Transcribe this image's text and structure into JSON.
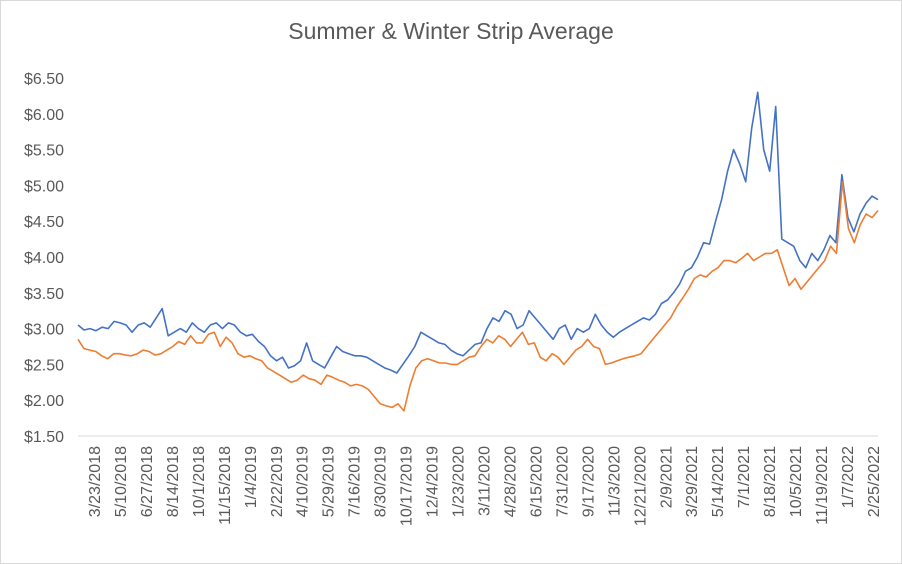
{
  "chart_data": {
    "type": "line",
    "title": "Summer & Winter Strip Average",
    "xlabel": "",
    "ylabel": "",
    "ylim": [
      1.5,
      6.5
    ],
    "y_ticks": [
      "$1.50",
      "$2.00",
      "$2.50",
      "$3.00",
      "$3.50",
      "$4.00",
      "$4.50",
      "$5.00",
      "$5.50",
      "$6.00",
      "$6.50"
    ],
    "x_ticks": [
      "3/23/2018",
      "5/10/2018",
      "6/27/2018",
      "8/14/2018",
      "10/1/2018",
      "11/15/2018",
      "1/4/2019",
      "2/22/2019",
      "4/10/2019",
      "5/29/2019",
      "7/16/2019",
      "8/30/2019",
      "10/17/2019",
      "12/4/2019",
      "1/23/2020",
      "3/11/2020",
      "4/28/2020",
      "6/15/2020",
      "7/31/2020",
      "9/17/2020",
      "11/3/2020",
      "12/21/2020",
      "2/9/2021",
      "3/29/2021",
      "5/14/2021",
      "7/1/2021",
      "8/18/2021",
      "10/5/2021",
      "11/19/2021",
      "1/7/2022",
      "2/25/2022"
    ],
    "grid": false,
    "legend": "none",
    "series": [
      {
        "color": "#4472c4",
        "values": [
          3.05,
          2.98,
          3.0,
          2.97,
          3.02,
          3.0,
          3.1,
          3.08,
          3.05,
          2.95,
          3.05,
          3.08,
          3.02,
          3.15,
          3.28,
          2.9,
          2.95,
          3.0,
          2.95,
          3.08,
          3.0,
          2.95,
          3.05,
          3.08,
          3.0,
          3.08,
          3.05,
          2.95,
          2.9,
          2.92,
          2.82,
          2.75,
          2.62,
          2.55,
          2.6,
          2.45,
          2.48,
          2.55,
          2.8,
          2.55,
          2.5,
          2.45,
          2.6,
          2.75,
          2.68,
          2.65,
          2.62,
          2.62,
          2.6,
          2.55,
          2.5,
          2.45,
          2.42,
          2.38,
          2.5,
          2.62,
          2.75,
          2.95,
          2.9,
          2.85,
          2.8,
          2.78,
          2.7,
          2.65,
          2.62,
          2.7,
          2.78,
          2.8,
          3.0,
          3.15,
          3.1,
          3.25,
          3.2,
          3.0,
          3.05,
          3.25,
          3.15,
          3.05,
          2.95,
          2.85,
          3.0,
          3.05,
          2.85,
          3.0,
          2.95,
          3.0,
          3.2,
          3.05,
          2.95,
          2.88,
          2.95,
          3.0,
          3.05,
          3.1,
          3.15,
          3.12,
          3.2,
          3.35,
          3.4,
          3.5,
          3.62,
          3.8,
          3.85,
          4.0,
          4.2,
          4.18,
          4.5,
          4.8,
          5.2,
          5.5,
          5.3,
          5.05,
          5.8,
          6.3,
          5.5,
          5.2,
          6.1,
          4.25,
          4.2,
          4.15,
          3.95,
          3.85,
          4.05,
          3.95,
          4.1,
          4.3,
          4.2,
          5.15,
          4.55,
          4.35,
          4.6,
          4.75,
          4.85,
          4.8
        ]
      },
      {
        "color": "#ed7d31",
        "values": [
          2.85,
          2.72,
          2.7,
          2.68,
          2.62,
          2.58,
          2.65,
          2.65,
          2.63,
          2.62,
          2.65,
          2.7,
          2.68,
          2.63,
          2.65,
          2.7,
          2.75,
          2.82,
          2.78,
          2.9,
          2.8,
          2.8,
          2.92,
          2.95,
          2.75,
          2.88,
          2.8,
          2.65,
          2.6,
          2.62,
          2.58,
          2.55,
          2.45,
          2.4,
          2.35,
          2.3,
          2.25,
          2.28,
          2.35,
          2.3,
          2.28,
          2.22,
          2.35,
          2.32,
          2.28,
          2.25,
          2.2,
          2.22,
          2.2,
          2.15,
          2.05,
          1.95,
          1.92,
          1.9,
          1.95,
          1.85,
          2.2,
          2.45,
          2.55,
          2.58,
          2.55,
          2.52,
          2.52,
          2.5,
          2.5,
          2.55,
          2.6,
          2.62,
          2.75,
          2.85,
          2.8,
          2.9,
          2.85,
          2.75,
          2.85,
          2.95,
          2.78,
          2.8,
          2.6,
          2.55,
          2.65,
          2.6,
          2.5,
          2.6,
          2.7,
          2.75,
          2.85,
          2.75,
          2.72,
          2.5,
          2.52,
          2.55,
          2.58,
          2.6,
          2.62,
          2.65,
          2.75,
          2.85,
          2.95,
          3.05,
          3.15,
          3.3,
          3.42,
          3.55,
          3.7,
          3.75,
          3.72,
          3.8,
          3.85,
          3.95,
          3.95,
          3.92,
          3.98,
          4.05,
          3.95,
          4.0,
          4.05,
          4.05,
          4.1,
          3.85,
          3.6,
          3.7,
          3.55,
          3.65,
          3.75,
          3.85,
          3.95,
          4.15,
          4.05,
          5.05,
          4.4,
          4.2,
          4.45,
          4.6,
          4.55,
          4.65
        ]
      }
    ]
  }
}
